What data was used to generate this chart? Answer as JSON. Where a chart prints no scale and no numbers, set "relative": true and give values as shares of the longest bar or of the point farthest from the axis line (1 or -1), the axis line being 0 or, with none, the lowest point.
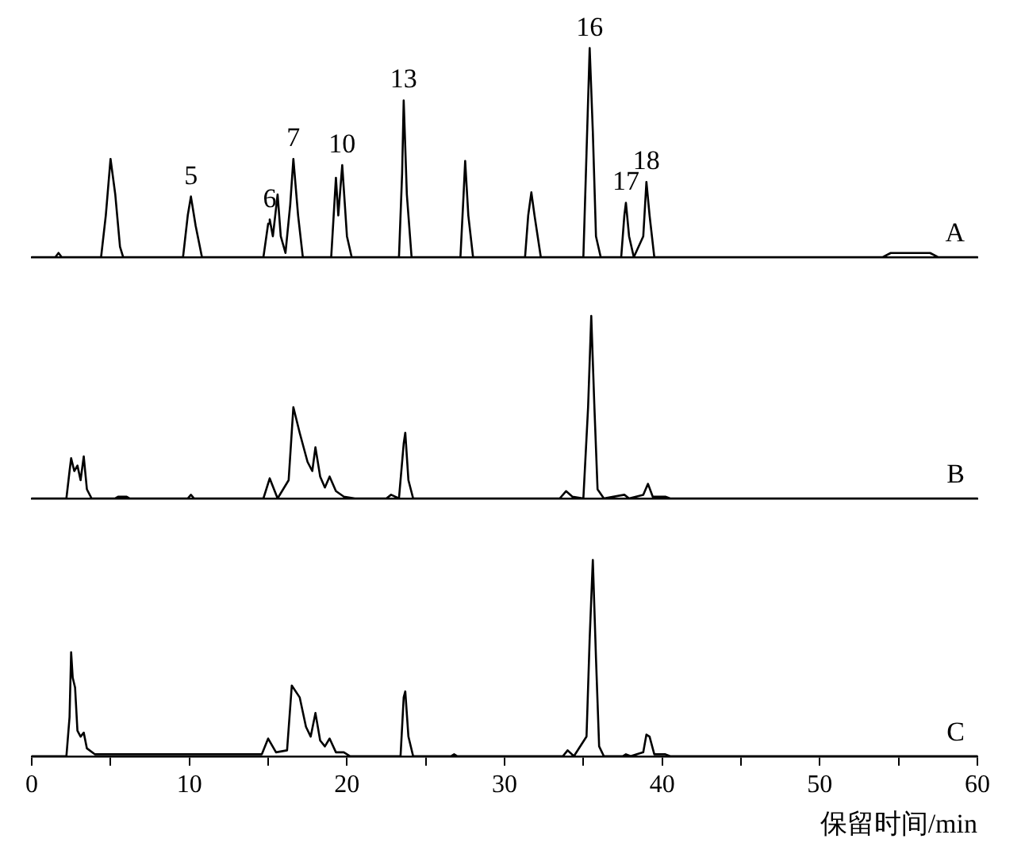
{
  "chart_data": [
    {
      "type": "line",
      "relative": true,
      "xlim": [
        0,
        60
      ],
      "legend": false,
      "grid": false,
      "series": [
        {
          "name": "A",
          "color": "#000000",
          "x": [
            0,
            1.5,
            1.7,
            1.9,
            4.4,
            4.7,
            5.0,
            5.3,
            5.6,
            5.8,
            9.6,
            9.9,
            10.1,
            10.4,
            10.8,
            14.7,
            15.0,
            15.1,
            15.3,
            15.6,
            15.8,
            16.1,
            16.4,
            16.6,
            16.9,
            17.2,
            19.0,
            19.3,
            19.45,
            19.7,
            20.0,
            20.3,
            23.3,
            23.5,
            23.6,
            23.8,
            24.1,
            27.2,
            27.4,
            27.5,
            27.7,
            28.0,
            31.3,
            31.5,
            31.7,
            31.9,
            32.3,
            35.0,
            35.2,
            35.4,
            35.6,
            35.8,
            36.1,
            37.4,
            37.6,
            37.7,
            37.9,
            38.2,
            38.8,
            39.0,
            39.2,
            39.5,
            54,
            54.5,
            57,
            57.5,
            60
          ],
          "values": [
            0,
            0,
            0.02,
            0,
            0,
            0.2,
            0.47,
            0.3,
            0.05,
            0,
            0,
            0.2,
            0.29,
            0.15,
            0,
            0,
            0.16,
            0.18,
            0.1,
            0.3,
            0.1,
            0.02,
            0.25,
            0.47,
            0.2,
            0,
            0,
            0.38,
            0.2,
            0.44,
            0.1,
            0,
            0,
            0.4,
            0.75,
            0.3,
            0,
            0,
            0.3,
            0.46,
            0.2,
            0,
            0,
            0.2,
            0.31,
            0.2,
            0,
            0,
            0.5,
            1,
            0.6,
            0.1,
            0,
            0,
            0.2,
            0.26,
            0.1,
            0,
            0.1,
            0.36,
            0.2,
            0,
            0,
            0.02,
            0.02,
            0,
            0
          ]
        }
      ],
      "annotations": [
        {
          "text": "5",
          "x": 10.1,
          "y": 0.29
        },
        {
          "text": "6",
          "x": 15.1,
          "y": 0.18
        },
        {
          "text": "7",
          "x": 16.6,
          "y": 0.47
        },
        {
          "text": "10",
          "x": 19.7,
          "y": 0.44
        },
        {
          "text": "13",
          "x": 23.6,
          "y": 0.75
        },
        {
          "text": "16",
          "x": 35.4,
          "y": 1
        },
        {
          "text": "17",
          "x": 37.7,
          "y": 0.26
        },
        {
          "text": "18",
          "x": 39.0,
          "y": 0.36
        }
      ]
    },
    {
      "type": "line",
      "relative": true,
      "xlim": [
        0,
        60
      ],
      "legend": false,
      "grid": false,
      "series": [
        {
          "name": "B",
          "color": "#000000",
          "x": [
            0,
            2.2,
            2.4,
            2.5,
            2.7,
            2.9,
            3.1,
            3.3,
            3.5,
            3.8,
            5.3,
            5.5,
            6.0,
            6.2,
            9.9,
            10.1,
            10.3,
            14.7,
            15.1,
            15.6,
            16.3,
            16.6,
            17.0,
            17.5,
            17.8,
            18.0,
            18.3,
            18.6,
            18.9,
            19.3,
            19.8,
            20.5,
            22.5,
            22.8,
            23.3,
            23.6,
            23.7,
            23.9,
            24.2,
            33.5,
            33.9,
            34.3,
            35.0,
            35.3,
            35.5,
            35.7,
            35.9,
            36.3,
            37.6,
            37.9,
            38.8,
            39.1,
            39.4,
            40.2,
            40.5,
            60
          ],
          "values": [
            0,
            0,
            0.15,
            0.22,
            0.15,
            0.18,
            0.1,
            0.23,
            0.05,
            0,
            0,
            0.01,
            0.01,
            0,
            0,
            0.02,
            0,
            0,
            0.11,
            0,
            0.1,
            0.5,
            0.36,
            0.2,
            0.15,
            0.28,
            0.12,
            0.06,
            0.12,
            0.04,
            0.01,
            0,
            0,
            0.02,
            0,
            0.3,
            0.36,
            0.1,
            0,
            0,
            0.04,
            0.01,
            0,
            0.5,
            1,
            0.5,
            0.05,
            0,
            0.02,
            0,
            0.02,
            0.08,
            0.01,
            0.01,
            0,
            0
          ]
        }
      ]
    },
    {
      "type": "line",
      "relative": true,
      "xlim": [
        0,
        60
      ],
      "xticks": [
        0,
        {
          "value": 5,
          "label": null
        },
        10,
        {
          "value": 15,
          "label": null
        },
        20,
        {
          "value": 25,
          "label": null
        },
        30,
        {
          "value": 35,
          "label": null
        },
        40,
        {
          "value": 45,
          "label": null
        },
        50,
        {
          "value": 55,
          "label": null
        },
        60
      ],
      "xlabel": "保留时间/min",
      "legend": false,
      "grid": false,
      "series": [
        {
          "name": "C",
          "color": "#000000",
          "x": [
            0,
            2.2,
            2.4,
            2.5,
            2.6,
            2.75,
            2.9,
            3.1,
            3.3,
            3.5,
            4.0,
            14.0,
            14.6,
            15.0,
            15.5,
            16.2,
            16.5,
            17.0,
            17.4,
            17.7,
            18.0,
            18.3,
            18.6,
            18.9,
            19.3,
            19.8,
            20.2,
            23.4,
            23.6,
            23.7,
            23.9,
            24.2,
            26.6,
            26.8,
            27.0,
            33.7,
            34.0,
            34.4,
            35.2,
            35.4,
            35.6,
            35.8,
            36.0,
            36.3,
            37.5,
            37.7,
            38.0,
            38.8,
            39.0,
            39.2,
            39.5,
            40.2,
            40.5,
            60
          ],
          "values": [
            0,
            0,
            0.2,
            0.53,
            0.4,
            0.35,
            0.13,
            0.1,
            0.12,
            0.04,
            0.01,
            0.01,
            0.01,
            0.09,
            0.02,
            0.03,
            0.36,
            0.3,
            0.15,
            0.1,
            0.22,
            0.08,
            0.05,
            0.09,
            0.02,
            0.02,
            0,
            0,
            0.3,
            0.33,
            0.1,
            0,
            0,
            0.01,
            0,
            0,
            0.03,
            0,
            0.1,
            0.6,
            1,
            0.5,
            0.05,
            0,
            0,
            0.01,
            0,
            0.02,
            0.11,
            0.1,
            0.01,
            0.01,
            0,
            0
          ]
        }
      ]
    }
  ]
}
